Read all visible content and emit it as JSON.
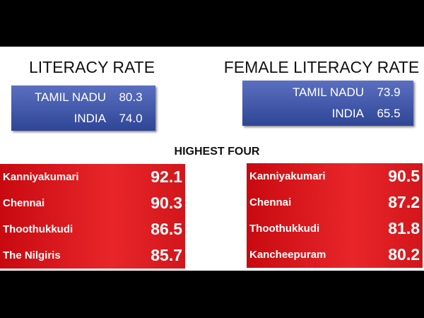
{
  "literacy_rate": {
    "title": "LITERACY RATE",
    "rows": [
      [
        "TAMIL NADU",
        "80.3"
      ],
      [
        "INDIA",
        "74.0"
      ]
    ]
  },
  "female_literacy_rate": {
    "title": "FEMALE LITERACY RATE",
    "rows": [
      [
        "TAMIL NADU",
        "73.9"
      ],
      [
        "INDIA",
        "65.5"
      ]
    ]
  },
  "highest_four": {
    "title": "HIGHEST FOUR",
    "left": [
      [
        "Kanniyakumari",
        "92.1"
      ],
      [
        "Chennai",
        "90.3"
      ],
      [
        "Thoothukkudi",
        "86.5"
      ],
      [
        "The Nilgiris",
        "85.7"
      ]
    ],
    "right": [
      [
        "Kanniyakumari",
        "90.5"
      ],
      [
        "Chennai",
        "87.2"
      ],
      [
        "Thoothukkudi",
        "81.8"
      ],
      [
        "Kancheepuram",
        "80.2"
      ]
    ]
  }
}
